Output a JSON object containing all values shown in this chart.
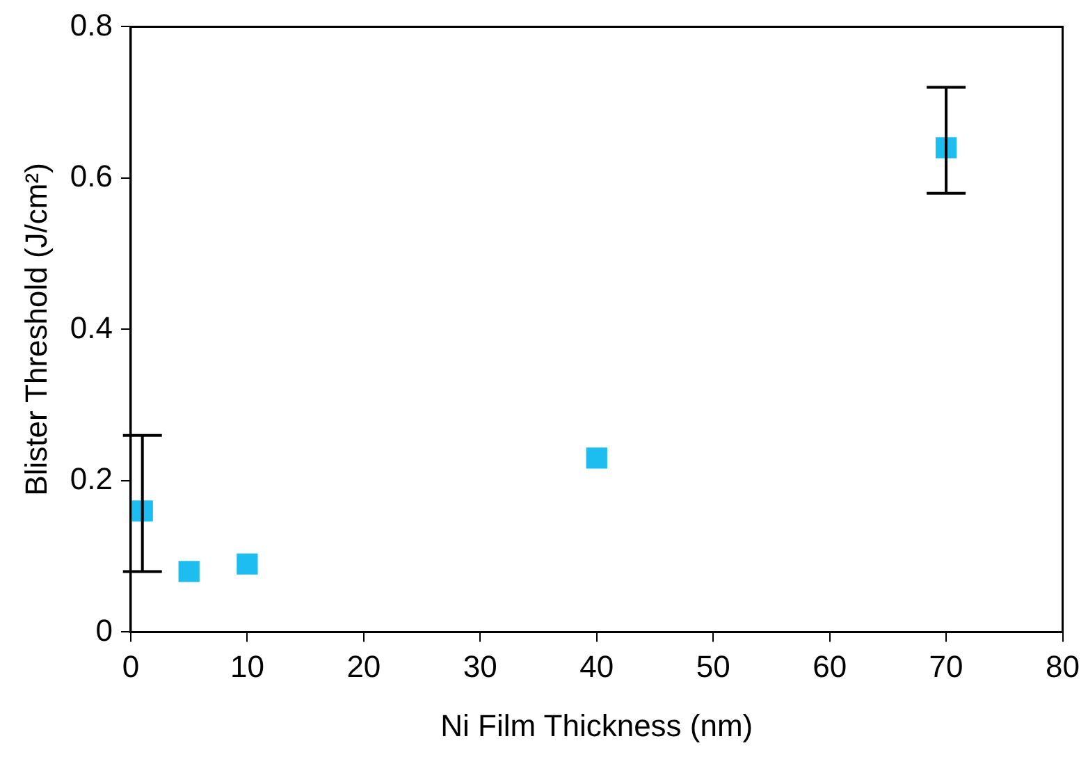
{
  "chart_data": {
    "type": "scatter",
    "xlabel": "Ni Film Thickness (nm)",
    "ylabel": "Blister Threshold (J/cm²)",
    "x": [
      1,
      5,
      10,
      40,
      70
    ],
    "values": [
      0.16,
      0.08,
      0.09,
      0.23,
      0.64
    ],
    "errors": [
      [
        0.08,
        0.26
      ],
      null,
      null,
      null,
      [
        0.58,
        0.72
      ]
    ],
    "color": "#1ebdf0",
    "marker": "square",
    "xlim": [
      0,
      80
    ],
    "xticks": [
      0,
      10,
      20,
      30,
      40,
      50,
      60,
      70,
      80
    ],
    "ylim": [
      0,
      0.8
    ],
    "yticks": [
      0,
      0.2,
      0.4,
      0.6,
      0.8
    ],
    "grid": false,
    "legend": false
  }
}
